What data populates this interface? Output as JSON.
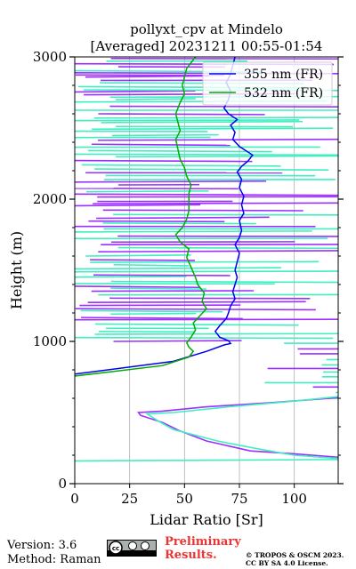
{
  "chart_data": {
    "type": "line",
    "title_line1": "pollyxt_cpv at Mindelo",
    "title_line2": "[Averaged] 20231211 00:55-01:54",
    "xlabel": "Lidar Ratio [Sr]",
    "ylabel": "Height (m)",
    "xlim": [
      0,
      120
    ],
    "ylim": [
      0,
      3000
    ],
    "xticks": [
      "0",
      "25",
      "50",
      "75",
      "100"
    ],
    "yticks": [
      "0",
      "1000",
      "2000",
      "3000"
    ],
    "grid": "vertical",
    "legend_position": "top-right",
    "series": [
      {
        "name": "355 nm (FR)",
        "color": "#0000ee",
        "points": [
          [
            -20,
            730
          ],
          [
            45,
            860
          ],
          [
            60,
            930
          ],
          [
            68,
            975
          ],
          [
            71,
            985
          ],
          [
            70,
            1005
          ],
          [
            66,
            1030
          ],
          [
            64,
            1070
          ],
          [
            66,
            1110
          ],
          [
            69,
            1160
          ],
          [
            70,
            1200
          ],
          [
            71,
            1250
          ],
          [
            73,
            1300
          ],
          [
            72,
            1350
          ],
          [
            73,
            1400
          ],
          [
            74,
            1450
          ],
          [
            73,
            1500
          ],
          [
            74,
            1560
          ],
          [
            75,
            1620
          ],
          [
            73,
            1680
          ],
          [
            75,
            1730
          ],
          [
            76,
            1780
          ],
          [
            75,
            1850
          ],
          [
            77,
            1900
          ],
          [
            76,
            1960
          ],
          [
            77,
            2020
          ],
          [
            75,
            2080
          ],
          [
            76,
            2140
          ],
          [
            74,
            2190
          ],
          [
            76,
            2230
          ],
          [
            79,
            2270
          ],
          [
            81,
            2310
          ],
          [
            75,
            2370
          ],
          [
            72,
            2420
          ],
          [
            73,
            2470
          ],
          [
            71,
            2520
          ],
          [
            74,
            2560
          ],
          [
            70,
            2600
          ],
          [
            68,
            2640
          ],
          [
            70,
            2700
          ],
          [
            71,
            2760
          ],
          [
            69,
            2820
          ],
          [
            71,
            2880
          ],
          [
            72,
            2940
          ],
          [
            73,
            3000
          ]
        ]
      },
      {
        "name": "532 nm (FR)",
        "color": "#00aa00",
        "points": [
          [
            -20,
            720
          ],
          [
            40,
            830
          ],
          [
            52,
            890
          ],
          [
            54,
            930
          ],
          [
            52,
            960
          ],
          [
            51,
            990
          ],
          [
            53,
            1030
          ],
          [
            55,
            1080
          ],
          [
            54,
            1130
          ],
          [
            57,
            1180
          ],
          [
            60,
            1230
          ],
          [
            58,
            1280
          ],
          [
            59,
            1340
          ],
          [
            56,
            1400
          ],
          [
            55,
            1450
          ],
          [
            53,
            1520
          ],
          [
            51,
            1590
          ],
          [
            52,
            1650
          ],
          [
            48,
            1700
          ],
          [
            46,
            1750
          ],
          [
            49,
            1800
          ],
          [
            51,
            1860
          ],
          [
            52,
            1920
          ],
          [
            52,
            1980
          ],
          [
            52,
            2040
          ],
          [
            53,
            2100
          ],
          [
            51,
            2160
          ],
          [
            50,
            2220
          ],
          [
            48,
            2280
          ],
          [
            47,
            2350
          ],
          [
            46,
            2420
          ],
          [
            48,
            2480
          ],
          [
            47,
            2540
          ],
          [
            46,
            2600
          ],
          [
            48,
            2680
          ],
          [
            50,
            2740
          ],
          [
            49,
            2800
          ],
          [
            50,
            2860
          ],
          [
            51,
            2920
          ],
          [
            55,
            3000
          ]
        ]
      }
    ]
  }
}
